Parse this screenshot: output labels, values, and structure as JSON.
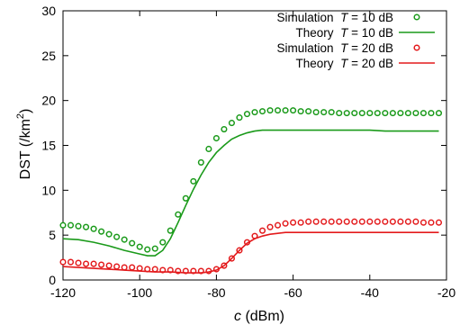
{
  "chart_data": {
    "type": "line",
    "xlabel_italic": "c",
    "xlabel_unit": " (dBm)",
    "ylabel_prefix": "DST (/km",
    "ylabel_sup": "2",
    "ylabel_suffix": ")",
    "xlim": [
      -120,
      -20
    ],
    "ylim": [
      0,
      30
    ],
    "x_ticks": [
      -120,
      -100,
      -80,
      -60,
      -40,
      -20
    ],
    "y_ticks": [
      0,
      5,
      10,
      15,
      20,
      25,
      30
    ],
    "grid": false,
    "legend_position": "top-right",
    "series": [
      {
        "legend_kind": "Simulation",
        "legend_var": "T",
        "legend_value": " = 10 dB",
        "style": "markers",
        "color": "#1a9a1a",
        "x": [
          -120,
          -118,
          -116,
          -114,
          -112,
          -110,
          -108,
          -106,
          -104,
          -102,
          -100,
          -98,
          -96,
          -94,
          -92,
          -90,
          -88,
          -86,
          -84,
          -82,
          -80,
          -78,
          -76,
          -74,
          -72,
          -70,
          -68,
          -66,
          -64,
          -62,
          -60,
          -58,
          -56,
          -54,
          -52,
          -50,
          -48,
          -46,
          -44,
          -42,
          -40,
          -38,
          -36,
          -34,
          -32,
          -30,
          -28,
          -26,
          -24,
          -22
        ],
        "y": [
          6.1,
          6.1,
          6.0,
          5.9,
          5.7,
          5.4,
          5.1,
          4.8,
          4.5,
          4.1,
          3.7,
          3.4,
          3.5,
          4.2,
          5.5,
          7.3,
          9.1,
          11.0,
          13.1,
          14.6,
          15.8,
          16.8,
          17.5,
          18.1,
          18.5,
          18.7,
          18.8,
          18.9,
          18.9,
          18.9,
          18.9,
          18.8,
          18.8,
          18.7,
          18.7,
          18.7,
          18.6,
          18.6,
          18.6,
          18.6,
          18.6,
          18.6,
          18.6,
          18.6,
          18.6,
          18.6,
          18.6,
          18.6,
          18.6,
          18.6
        ]
      },
      {
        "legend_kind": "Theory",
        "legend_var": "T",
        "legend_value": " = 10 dB",
        "style": "line",
        "color": "#1a9a1a",
        "x": [
          -120,
          -116,
          -112,
          -108,
          -104,
          -100,
          -98,
          -96,
          -94,
          -92,
          -90,
          -88,
          -86,
          -84,
          -82,
          -80,
          -78,
          -76,
          -74,
          -72,
          -70,
          -68,
          -66,
          -64,
          -62,
          -60,
          -56,
          -52,
          -48,
          -44,
          -40,
          -36,
          -32,
          -28,
          -24,
          -22
        ],
        "y": [
          4.6,
          4.5,
          4.2,
          3.8,
          3.3,
          2.9,
          2.7,
          2.7,
          3.3,
          4.6,
          6.4,
          8.3,
          10.1,
          11.7,
          13.1,
          14.2,
          15.0,
          15.7,
          16.1,
          16.4,
          16.6,
          16.7,
          16.7,
          16.7,
          16.7,
          16.7,
          16.7,
          16.7,
          16.7,
          16.7,
          16.7,
          16.6,
          16.6,
          16.6,
          16.6,
          16.6
        ]
      },
      {
        "legend_kind": "Simulation",
        "legend_var": "T",
        "legend_value": " = 20 dB",
        "style": "markers",
        "color": "#e31a1c",
        "x": [
          -120,
          -118,
          -116,
          -114,
          -112,
          -110,
          -108,
          -106,
          -104,
          -102,
          -100,
          -98,
          -96,
          -94,
          -92,
          -90,
          -88,
          -86,
          -84,
          -82,
          -80,
          -78,
          -76,
          -74,
          -72,
          -70,
          -68,
          -66,
          -64,
          -62,
          -60,
          -58,
          -56,
          -54,
          -52,
          -50,
          -48,
          -46,
          -44,
          -42,
          -40,
          -38,
          -36,
          -34,
          -32,
          -30,
          -28,
          -26,
          -24,
          -22
        ],
        "y": [
          2.0,
          2.0,
          1.9,
          1.8,
          1.8,
          1.7,
          1.6,
          1.5,
          1.4,
          1.4,
          1.3,
          1.2,
          1.2,
          1.1,
          1.1,
          1.0,
          1.0,
          1.0,
          1.0,
          1.0,
          1.2,
          1.6,
          2.4,
          3.3,
          4.2,
          4.9,
          5.5,
          5.9,
          6.1,
          6.3,
          6.4,
          6.4,
          6.5,
          6.5,
          6.5,
          6.5,
          6.5,
          6.5,
          6.5,
          6.5,
          6.5,
          6.5,
          6.5,
          6.5,
          6.5,
          6.5,
          6.5,
          6.4,
          6.4,
          6.4
        ]
      },
      {
        "legend_kind": "Theory",
        "legend_var": "T",
        "legend_value": " = 20 dB",
        "style": "line",
        "color": "#e31a1c",
        "x": [
          -120,
          -116,
          -112,
          -108,
          -104,
          -100,
          -96,
          -92,
          -88,
          -84,
          -82,
          -80,
          -78,
          -76,
          -74,
          -72,
          -70,
          -68,
          -66,
          -64,
          -62,
          -60,
          -56,
          -52,
          -48,
          -44,
          -40,
          -36,
          -32,
          -28,
          -24,
          -22
        ],
        "y": [
          1.5,
          1.4,
          1.3,
          1.2,
          1.1,
          1.0,
          0.9,
          0.9,
          0.8,
          0.8,
          0.9,
          1.1,
          1.6,
          2.4,
          3.3,
          4.1,
          4.6,
          4.9,
          5.1,
          5.2,
          5.3,
          5.3,
          5.3,
          5.3,
          5.3,
          5.3,
          5.3,
          5.3,
          5.3,
          5.3,
          5.3,
          5.3
        ]
      }
    ]
  }
}
